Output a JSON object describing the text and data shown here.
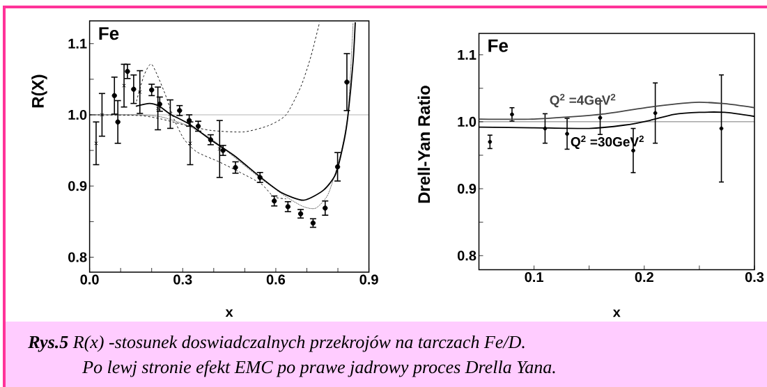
{
  "chart_data": [
    {
      "type": "scatter",
      "xlabel": "x",
      "ylabel": "R(X)",
      "xlim": [
        0,
        0.9
      ],
      "ylim": [
        0.779,
        1.132
      ],
      "xticks": [
        {
          "value": 0,
          "label": "0.0"
        },
        {
          "value": 0.1,
          "label": null
        },
        {
          "value": 0.2,
          "label": null
        },
        {
          "value": 0.3,
          "label": "0.3"
        },
        {
          "value": 0.4,
          "label": null
        },
        {
          "value": 0.5,
          "label": null
        },
        {
          "value": 0.6,
          "label": "0.6"
        },
        {
          "value": 0.7,
          "label": null
        },
        {
          "value": 0.8,
          "label": null
        },
        {
          "value": 0.9,
          "label": "0.9"
        }
      ],
      "yticks": [
        {
          "value": 0.8,
          "label": "0.8"
        },
        {
          "value": 0.85,
          "label": null
        },
        {
          "value": 0.9,
          "label": "0.9"
        },
        {
          "value": 0.95,
          "label": null
        },
        {
          "value": 1.0,
          "label": "1.0"
        },
        {
          "value": 1.05,
          "label": null
        },
        {
          "value": 1.1,
          "label": "1.1"
        }
      ],
      "annotations": [
        "Fe"
      ],
      "ref_lines": [
        {
          "axis": "y",
          "value": 1.0
        }
      ],
      "series": [
        {
          "marker": "circle",
          "color": "#000000",
          "x": [
            0.08,
            0.091,
            0.122,
            0.142,
            0.2,
            0.226,
            0.29,
            0.321,
            0.35,
            0.39,
            0.43,
            0.47,
            0.549,
            0.595,
            0.639,
            0.68,
            0.72,
            0.759,
            0.799,
            0.829
          ],
          "values": [
            1.027,
            0.99,
            1.061,
            1.036,
            1.035,
            1.015,
            1.006,
            0.992,
            0.984,
            0.965,
            0.95,
            0.926,
            0.912,
            0.879,
            0.871,
            0.861,
            0.848,
            0.869,
            0.927,
            1.046
          ],
          "errors": [
            0.026,
            0.03,
            0.01,
            0.02,
            0.008,
            0.01,
            0.007,
            0.008,
            0.007,
            0.007,
            0.007,
            0.008,
            0.007,
            0.007,
            0.007,
            0.006,
            0.006,
            0.01,
            0.02,
            0.04
          ]
        },
        {
          "marker": "cross",
          "color": "#000000",
          "x": [
            0.021,
            0.04,
            0.111,
            0.162,
            0.22,
            0.26,
            0.324,
            0.419
          ],
          "values": [
            0.96,
            1.0,
            1.041,
            1.032,
            1.009,
            1.001,
            0.96,
            0.952
          ],
          "errors": [
            0.03,
            0.03,
            0.03,
            0.03,
            0.03,
            0.02,
            0.03,
            0.04
          ]
        },
        {
          "type": "line",
          "marker": "none",
          "line_style": "solid",
          "color": "#000000",
          "x": [
            0.149,
            0.193,
            0.225,
            0.26,
            0.321,
            0.393,
            0.465,
            0.549,
            0.617,
            0.689,
            0.753,
            0.793,
            0.821,
            0.833,
            0.849,
            0.856
          ],
          "values": [
            1.012,
            1.016,
            1.012,
            1.001,
            0.987,
            0.964,
            0.943,
            0.913,
            0.891,
            0.88,
            0.894,
            0.917,
            0.966,
            1.001,
            1.075,
            1.13
          ]
        },
        {
          "type": "line",
          "marker": "none",
          "line_style": "dotted",
          "color": "#000000",
          "x": [
            0.0,
            0.152,
            0.232,
            0.321,
            0.393,
            0.473,
            0.553,
            0.633,
            0.689,
            0.729,
            0.769,
            0.809,
            0.833,
            0.849
          ],
          "values": [
            1.0,
            1.0,
            0.997,
            0.984,
            0.966,
            0.938,
            0.91,
            0.885,
            0.871,
            0.869,
            0.889,
            0.945,
            1.005,
            1.13
          ]
        },
        {
          "type": "line",
          "marker": "none",
          "line_style": "dashed",
          "color": "#000000",
          "x": [
            0.151,
            0.175,
            0.2,
            0.24,
            0.272,
            0.304,
            0.345,
            0.417,
            0.481,
            0.553,
            0.593,
            0.633
          ],
          "values": [
            1.019,
            1.055,
            1.071,
            1.033,
            0.994,
            0.966,
            0.948,
            0.934,
            0.92,
            0.903,
            0.885,
            0.882
          ]
        },
        {
          "type": "line",
          "marker": "none",
          "line_style": "dashed",
          "color": "#000000",
          "x": [
            0.0,
            0.16,
            0.232,
            0.313,
            0.393,
            0.497,
            0.577,
            0.633,
            0.681,
            0.713,
            0.741
          ],
          "values": [
            1.0,
            0.999,
            0.994,
            0.985,
            0.978,
            0.976,
            0.985,
            1.0,
            1.04,
            1.082,
            1.13
          ]
        }
      ]
    },
    {
      "type": "scatter",
      "xlabel": "x",
      "ylabel": "Drell-Yan Ratio",
      "xlim": [
        0.05,
        0.3
      ],
      "ylim": [
        0.779,
        1.132
      ],
      "xticks": [
        {
          "value": 0.1,
          "label": "0.1"
        },
        {
          "value": 0.15,
          "label": null
        },
        {
          "value": 0.2,
          "label": "0.2"
        },
        {
          "value": 0.25,
          "label": null
        },
        {
          "value": 0.3,
          "label": "0.3"
        }
      ],
      "yticks": [
        {
          "value": 0.8,
          "label": "0.8"
        },
        {
          "value": 0.85,
          "label": null
        },
        {
          "value": 0.9,
          "label": "0.9"
        },
        {
          "value": 0.95,
          "label": null
        },
        {
          "value": 1.0,
          "label": "1.0"
        },
        {
          "value": 1.05,
          "label": null
        },
        {
          "value": 1.1,
          "label": "1.1"
        }
      ],
      "annotations": [
        "Fe",
        "**Rys.5**  R(x) -stosunek doswiadczalnych  przekrojów na tarczach  Fe/D.",
        "Po lewj stronie efekt EMC po prawe jadrowy proces Drella Yana."
      ],
      "ref_lines": [
        {
          "axis": "y",
          "value": 1.0
        }
      ],
      "series": [
        {
          "marker": "circle",
          "color": "#000000",
          "x": [
            0.06,
            0.08,
            0.11,
            0.13,
            0.16,
            0.19,
            0.21,
            0.27
          ],
          "values": [
            0.97,
            1.011,
            0.99,
            0.982,
            1.006,
            0.957,
            1.013,
            0.99
          ],
          "errors": [
            0.01,
            0.01,
            0.022,
            0.023,
            0.025,
            0.033,
            0.045,
            0.08
          ]
        },
        {
          "type": "line",
          "name": "Q$^{2}$ =4GeV$^{2}$",
          "marker": "none",
          "line_style": "solid",
          "color": "#444444",
          "x": [
            0.05,
            0.1,
            0.16,
            0.205,
            0.246,
            0.273,
            0.3
          ],
          "values": [
            1.004,
            1.004,
            1.011,
            1.022,
            1.029,
            1.027,
            1.021
          ]
        },
        {
          "type": "line",
          "name": "Q$^{2}$ =30GeV$^{2}$",
          "marker": "none",
          "line_style": "solid",
          "color": "#000000",
          "x": [
            0.05,
            0.1,
            0.15,
            0.182,
            0.205,
            0.227,
            0.25,
            0.273,
            0.3
          ],
          "values": [
            0.992,
            0.991,
            0.99,
            0.995,
            1.002,
            1.011,
            1.014,
            1.014,
            1.008
          ]
        }
      ]
    }
  ]
}
